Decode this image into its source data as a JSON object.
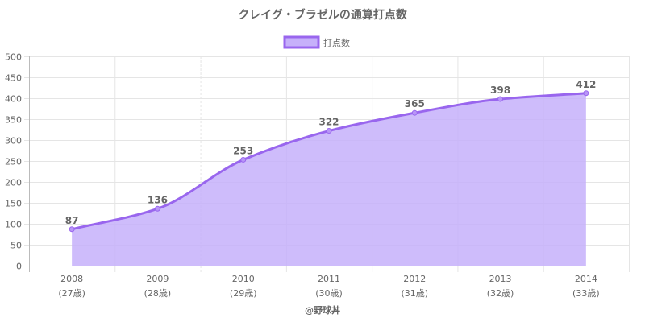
{
  "chart_data": {
    "type": "line",
    "title": "クレイグ・ブラゼルの通算打点数",
    "legend": {
      "position": "top",
      "label": "打点数"
    },
    "categories": [
      "2008",
      "2009",
      "2010",
      "2011",
      "2012",
      "2013",
      "2014"
    ],
    "category_sublabels": [
      "(27歳)",
      "(28歳)",
      "(29歳)",
      "(30歳)",
      "(31歳)",
      "(32歳)",
      "(33歳)"
    ],
    "series": [
      {
        "name": "打点数",
        "values": [
          87,
          136,
          253,
          322,
          365,
          398,
          412
        ]
      }
    ],
    "ylim": [
      0,
      500
    ],
    "yticks": [
      "0",
      "50",
      "100",
      "150",
      "200",
      "250",
      "300",
      "350",
      "400",
      "450",
      "500"
    ],
    "data_labels": [
      "87",
      "136",
      "253",
      "322",
      "365",
      "398",
      "412"
    ],
    "grid": true,
    "fill": true,
    "colors": {
      "line": "#9966ee",
      "fill": "#c6b0fa",
      "point": "#b896f7",
      "grid": "#e5e5e5",
      "text": "#666666"
    }
  },
  "footer": {
    "credit": "@野球丼"
  }
}
